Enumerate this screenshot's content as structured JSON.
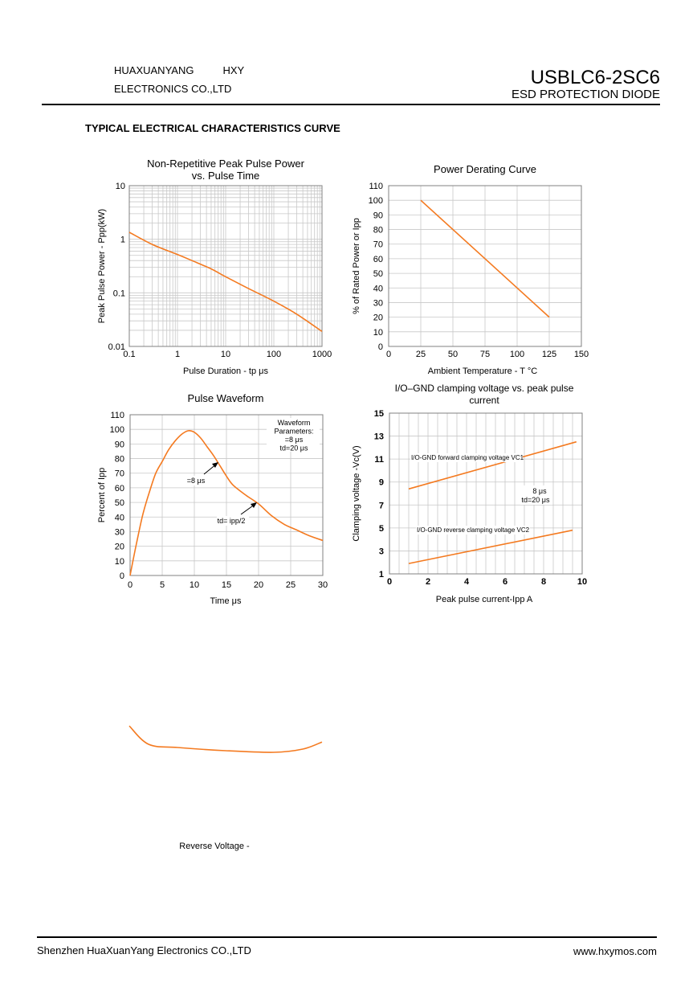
{
  "header": {
    "company_line1_a": "HUAXUANYANG",
    "company_line1_b": "HXY",
    "company_line2": "ELECTRONICS CO.,LTD",
    "part_number": "USBLC6-2SC6",
    "part_subtitle": "ESD PROTECTION DIODE"
  },
  "section_title": "TYPICAL ELECTRICAL CHARACTERISTICS CURVE",
  "footer": {
    "company": "Shenzhen HuaXuanYang Electronics CO.,LTD",
    "website": "www.hxymos.com"
  },
  "colors": {
    "curve": "#f47a20",
    "grid": "#c8c8c8",
    "axis": "#000000"
  },
  "chart_data": [
    {
      "id": "peak-pulse-power",
      "type": "line",
      "title": [
        "Non-Repetitive Peak Pulse Power",
        "vs. Pulse Time"
      ],
      "xlabel": "Pulse Duration - tp  μs",
      "ylabel": "Peak Pulse Power - Ppp(kW)",
      "xscale": "log",
      "yscale": "log",
      "xlim": [
        0.1,
        1000
      ],
      "ylim": [
        0.01,
        10
      ],
      "xticks": [
        "0.1",
        "1",
        "10",
        "100",
        "1000"
      ],
      "yticks": [
        "0.01",
        "0.1",
        "1",
        "10"
      ],
      "grid": true,
      "series": [
        {
          "x": [
            0.1,
            0.3,
            1,
            2,
            5,
            10,
            30,
            100,
            300,
            1000
          ],
          "y": [
            1.35,
            0.8,
            0.52,
            0.4,
            0.28,
            0.2,
            0.12,
            0.07,
            0.04,
            0.019
          ]
        }
      ]
    },
    {
      "id": "power-derating",
      "type": "line",
      "title": [
        "Power Derating Curve"
      ],
      "xlabel": "Ambient Temperature - T   °C",
      "ylabel": "% of Rated Power or Ipp",
      "xlim": [
        0,
        150
      ],
      "ylim": [
        0,
        110
      ],
      "xticks": [
        "0",
        "25",
        "50",
        "75",
        "100",
        "125",
        "150"
      ],
      "yticks": [
        "0",
        "10",
        "20",
        "30",
        "40",
        "50",
        "60",
        "70",
        "80",
        "90",
        "100",
        "110"
      ],
      "grid": true,
      "series": [
        {
          "x": [
            25,
            125
          ],
          "y": [
            100,
            20
          ]
        }
      ]
    },
    {
      "id": "pulse-waveform",
      "type": "line",
      "title": [
        "Pulse Waveform"
      ],
      "xlabel": "Time    μs",
      "ylabel": "Percent of Ipp",
      "xlim": [
        0,
        30
      ],
      "ylim": [
        0,
        110
      ],
      "xticks": [
        "0",
        "5",
        "10",
        "15",
        "20",
        "25",
        "30"
      ],
      "yticks": [
        "0",
        "10",
        "20",
        "30",
        "40",
        "50",
        "60",
        "70",
        "80",
        "90",
        "100",
        "110"
      ],
      "grid": true,
      "annotations": {
        "params": [
          "Waveform",
          "Parameters:",
          "=8 μs",
          "td=20 μs"
        ],
        "tr_label": "=8 μs",
        "td_label": "td= ipp/2"
      },
      "series": [
        {
          "x": [
            0,
            1,
            2,
            3,
            4,
            5,
            6,
            7,
            8,
            9,
            10,
            11,
            12,
            13,
            14,
            15,
            16,
            18,
            20,
            22,
            24,
            26,
            28,
            30
          ],
          "y": [
            0,
            22,
            42,
            57,
            70,
            78,
            86,
            92,
            96.5,
            99,
            98,
            94,
            88,
            82,
            75,
            68,
            62,
            55,
            49,
            41,
            35,
            31,
            27,
            24
          ]
        }
      ]
    },
    {
      "id": "clamping-voltage",
      "type": "line",
      "title": [
        "I/O–GND clamping voltage vs. peak pulse",
        "current"
      ],
      "xlabel": "Peak pulse current-Ipp A",
      "ylabel": "Clamping voltage -Vc(V)",
      "xlim": [
        0,
        10
      ],
      "ylim": [
        1,
        15
      ],
      "xticks": [
        "0",
        "2",
        "4",
        "6",
        "8",
        "10"
      ],
      "yticks": [
        "1",
        "3",
        "5",
        "7",
        "9",
        "11",
        "13",
        "15"
      ],
      "grid": true,
      "annotations": {
        "vc1": "I/O-GND forward clamping voltage VC1",
        "vc2": "I/O-GND reverse clamping voltage VC2",
        "params": [
          "8 μs",
          "td=20 μs"
        ]
      },
      "series": [
        {
          "name": "I/O-GND forward clamping voltage VC1",
          "x": [
            1,
            9.7
          ],
          "y": [
            8.4,
            12.5
          ]
        },
        {
          "name": "I/O-GND reverse clamping voltage VC2",
          "x": [
            1,
            9.5
          ],
          "y": [
            1.9,
            4.8
          ]
        }
      ]
    },
    {
      "id": "reverse-voltage",
      "type": "line",
      "xlabel": "Reverse Voltage -",
      "series": [
        {
          "x": [
            0,
            0.1,
            0.25,
            0.5,
            0.75,
            0.9,
            1
          ],
          "y": [
            0.92,
            0.35,
            0.25,
            0.15,
            0.1,
            0.2,
            0.42
          ]
        }
      ]
    }
  ]
}
